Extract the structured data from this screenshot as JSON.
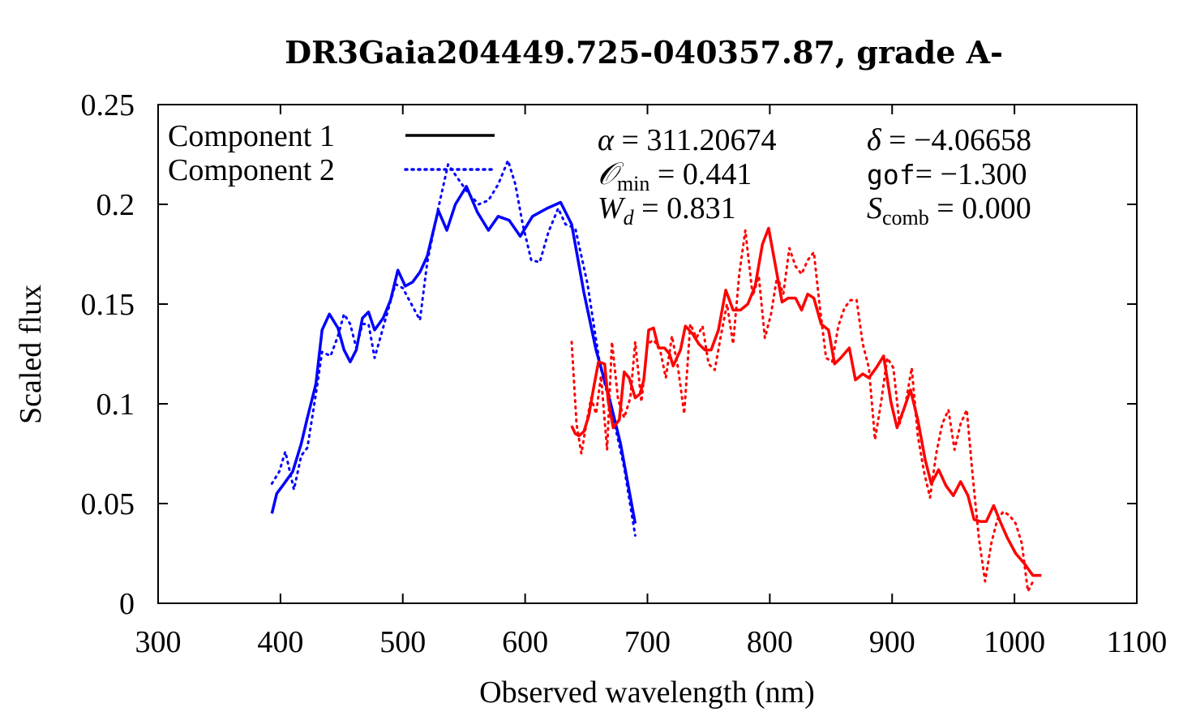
{
  "chart_data": {
    "type": "line",
    "title": "DR3Gaia204449.725-040357.87, grade A-",
    "xlabel": "Observed wavelength (nm)",
    "ylabel": "Scaled flux",
    "xlim": [
      300,
      1100
    ],
    "ylim": [
      0,
      0.25
    ],
    "xticks": [
      300,
      400,
      500,
      600,
      700,
      800,
      900,
      1000,
      1100
    ],
    "yticks": [
      0,
      0.05,
      0.1,
      0.15,
      0.2,
      0.25
    ],
    "xtick_labels": [
      "300",
      "400",
      "500",
      "600",
      "700",
      "800",
      "900",
      "1000",
      "1100"
    ],
    "ytick_labels": [
      "0",
      "0.05",
      "0.1",
      "0.15",
      "0.2",
      "0.25"
    ],
    "grid": false,
    "legend_position": "top-left",
    "legend": [
      {
        "label": "Component 1",
        "style": "solid",
        "color": "#000000"
      },
      {
        "label": "Component 2",
        "style": "dotted",
        "color": "#0000ff"
      }
    ],
    "annotations": {
      "alpha_sym": "α",
      "alpha_eq": " = 311.20674",
      "delta_sym": "δ",
      "delta_eq": " = −4.06658",
      "omin_sym": "𝒪",
      "omin_sub": "min",
      "omin_eq": " = 0.441",
      "gof_name": "gof",
      "gof_eq": "= −1.300",
      "wd_sym": "W",
      "wd_sub": "d",
      "wd_eq": " = 0.831",
      "scomb_sym": "S",
      "scomb_sub": "comb",
      "scomb_eq": " = 0.000"
    },
    "series": [
      {
        "color": "#0000ff",
        "style": "solid",
        "x": [
          393,
          397,
          403,
          410,
          417,
          422,
          429,
          434,
          440,
          447,
          452,
          457,
          462,
          467,
          472,
          477,
          484,
          490,
          496,
          502,
          508,
          514,
          520,
          529,
          536,
          543,
          552,
          561,
          570,
          578,
          587,
          596,
          606,
          618,
          629,
          638,
          648,
          658,
          668,
          678,
          690
        ],
        "y": [
          0.045,
          0.055,
          0.06,
          0.066,
          0.08,
          0.093,
          0.11,
          0.137,
          0.145,
          0.138,
          0.127,
          0.121,
          0.127,
          0.143,
          0.146,
          0.137,
          0.143,
          0.152,
          0.167,
          0.159,
          0.161,
          0.166,
          0.174,
          0.197,
          0.187,
          0.2,
          0.209,
          0.196,
          0.187,
          0.194,
          0.192,
          0.184,
          0.194,
          0.198,
          0.201,
          0.19,
          0.156,
          0.127,
          0.105,
          0.08,
          0.04
        ]
      },
      {
        "color": "#0000ff",
        "style": "dotted",
        "x": [
          393,
          399,
          404,
          411,
          417,
          422,
          429,
          434,
          441,
          447,
          452,
          457,
          462,
          467,
          472,
          477,
          482,
          488,
          494,
          500,
          507,
          514,
          520,
          529,
          537,
          545,
          553,
          562,
          570,
          578,
          586,
          592,
          598,
          605,
          612,
          619,
          627,
          633,
          641,
          651,
          661,
          671,
          681,
          690
        ],
        "y": [
          0.06,
          0.066,
          0.076,
          0.057,
          0.074,
          0.078,
          0.105,
          0.126,
          0.124,
          0.134,
          0.145,
          0.14,
          0.128,
          0.14,
          0.14,
          0.123,
          0.134,
          0.147,
          0.16,
          0.158,
          0.15,
          0.142,
          0.171,
          0.198,
          0.22,
          0.213,
          0.206,
          0.2,
          0.202,
          0.21,
          0.222,
          0.21,
          0.19,
          0.172,
          0.171,
          0.186,
          0.198,
          0.19,
          0.188,
          0.16,
          0.12,
          0.096,
          0.068,
          0.034
        ]
      },
      {
        "color": "#ff0000",
        "style": "solid",
        "x": [
          638,
          641,
          644,
          648,
          652,
          656,
          660,
          665,
          668,
          672,
          677,
          681,
          685,
          690,
          694,
          697,
          701,
          705,
          709,
          714,
          718,
          721,
          727,
          731,
          737,
          742,
          747,
          752,
          758,
          764,
          770,
          776,
          782,
          788,
          794,
          799,
          805,
          810,
          815,
          821,
          826,
          831,
          836,
          842,
          848,
          853,
          858,
          865,
          870,
          876,
          881,
          887,
          893,
          899,
          904,
          910,
          915,
          921,
          927,
          932,
          938,
          944,
          950,
          956,
          962,
          967,
          972,
          977,
          983,
          989,
          994,
          1001,
          1008,
          1015,
          1022
        ],
        "y": [
          0.089,
          0.085,
          0.084,
          0.086,
          0.094,
          0.108,
          0.121,
          0.12,
          0.101,
          0.088,
          0.092,
          0.116,
          0.113,
          0.103,
          0.105,
          0.112,
          0.137,
          0.138,
          0.128,
          0.128,
          0.125,
          0.119,
          0.127,
          0.139,
          0.135,
          0.13,
          0.127,
          0.127,
          0.137,
          0.157,
          0.147,
          0.147,
          0.15,
          0.159,
          0.18,
          0.188,
          0.168,
          0.151,
          0.153,
          0.153,
          0.147,
          0.155,
          0.153,
          0.14,
          0.137,
          0.12,
          0.123,
          0.128,
          0.112,
          0.115,
          0.113,
          0.118,
          0.124,
          0.101,
          0.088,
          0.098,
          0.107,
          0.092,
          0.072,
          0.06,
          0.067,
          0.059,
          0.054,
          0.061,
          0.054,
          0.042,
          0.041,
          0.041,
          0.049,
          0.04,
          0.033,
          0.025,
          0.02,
          0.014,
          0.014
        ]
      },
      {
        "color": "#ff0000",
        "style": "dotted",
        "x": [
          638,
          642,
          646,
          650,
          654,
          658,
          662,
          667,
          671,
          676,
          681,
          686,
          690,
          695,
          700,
          705,
          710,
          715,
          720,
          725,
          730,
          735,
          740,
          745,
          750,
          755,
          760,
          765,
          770,
          775,
          780,
          786,
          791,
          796,
          801,
          806,
          811,
          816,
          821,
          826,
          831,
          836,
          841,
          846,
          851,
          856,
          861,
          866,
          871,
          876,
          881,
          886,
          891,
          896,
          901,
          906,
          911,
          916,
          921,
          926,
          931,
          936,
          941,
          946,
          951,
          956,
          961,
          966,
          971,
          976,
          981,
          986,
          991,
          996,
          1001,
          1006,
          1011,
          1016
        ],
        "y": [
          0.131,
          0.09,
          0.075,
          0.09,
          0.103,
          0.095,
          0.114,
          0.077,
          0.131,
          0.102,
          0.093,
          0.103,
          0.131,
          0.101,
          0.13,
          0.132,
          0.128,
          0.113,
          0.134,
          0.118,
          0.095,
          0.14,
          0.133,
          0.139,
          0.12,
          0.117,
          0.134,
          0.15,
          0.13,
          0.165,
          0.187,
          0.154,
          0.164,
          0.133,
          0.145,
          0.164,
          0.155,
          0.178,
          0.169,
          0.165,
          0.172,
          0.176,
          0.148,
          0.123,
          0.121,
          0.139,
          0.148,
          0.152,
          0.152,
          0.13,
          0.118,
          0.082,
          0.101,
          0.123,
          0.118,
          0.09,
          0.1,
          0.118,
          0.084,
          0.066,
          0.053,
          0.075,
          0.09,
          0.097,
          0.077,
          0.09,
          0.097,
          0.063,
          0.032,
          0.011,
          0.03,
          0.042,
          0.046,
          0.044,
          0.04,
          0.03,
          0.006,
          0.012
        ]
      }
    ]
  }
}
